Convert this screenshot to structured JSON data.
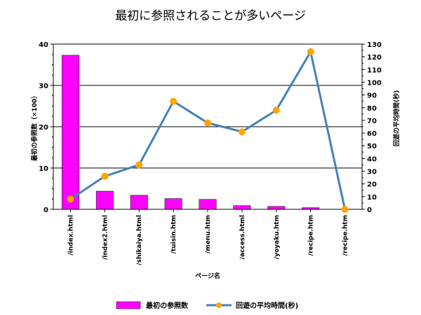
{
  "chart_data": {
    "type": "bar+line",
    "title": "最初に参照されることが多いページ",
    "xlabel": "ページ名",
    "ylabel_left": "最初の参照数（×100）",
    "ylabel_right": "回遊の平均時間(秒)",
    "categories": [
      "/index.html",
      "/index2.html",
      "/shikaiya.html",
      "/tuisin.htm",
      "/menu.htm",
      "/access.html",
      "/yoyaku.htm",
      "/recipe.htm",
      "/recipe.htm"
    ],
    "ylim_left": [
      0,
      40
    ],
    "yticks_left": [
      0,
      10,
      20,
      30,
      40
    ],
    "ylim_right": [
      0,
      130
    ],
    "yticks_right": [
      0,
      10,
      20,
      30,
      40,
      50,
      60,
      70,
      80,
      90,
      100,
      110,
      120,
      130
    ],
    "grid": true,
    "legend_position": "bottom",
    "series": [
      {
        "name": "最初の参照数",
        "kind": "bar",
        "axis": "left",
        "color": "#ff00ff",
        "values": [
          37.3,
          4.4,
          3.4,
          2.6,
          2.4,
          0.9,
          0.7,
          0.4,
          0
        ]
      },
      {
        "name": "回遊の平均時間(秒)",
        "kind": "line",
        "axis": "right",
        "color": "#4682b4",
        "marker_color": "#ffa500",
        "values": [
          8,
          26,
          35,
          85,
          68,
          61,
          78,
          124,
          0
        ]
      }
    ]
  }
}
